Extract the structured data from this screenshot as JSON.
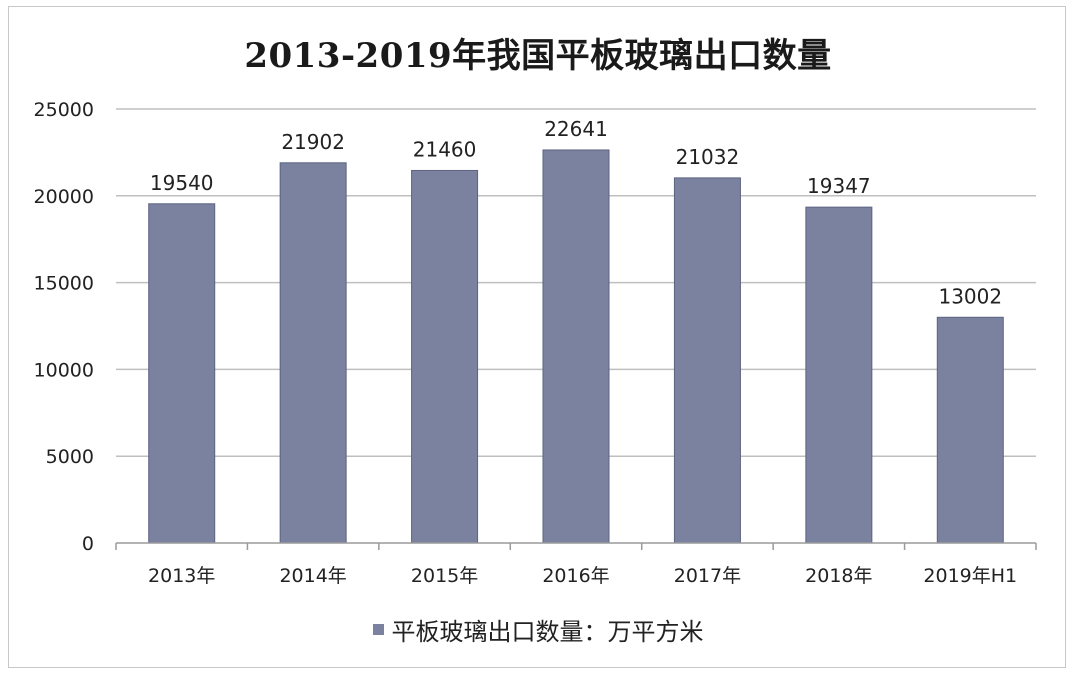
{
  "chart_data": {
    "type": "bar",
    "title": "2013-2019年我国平板玻璃出口数量",
    "categories": [
      "2013年",
      "2014年",
      "2015年",
      "2016年",
      "2017年",
      "2018年",
      "2019年H1"
    ],
    "series": [
      {
        "name": "平板玻璃出口数量：万平方米",
        "values": [
          19540,
          21902,
          21460,
          22641,
          21032,
          19347,
          13002
        ]
      }
    ],
    "ylim": [
      0,
      25000
    ],
    "yticks": [
      0,
      5000,
      10000,
      15000,
      20000,
      25000
    ],
    "grid": true,
    "legend_position": "bottom",
    "colors": {
      "bar": "#7b829f",
      "bar_edge": "#5d6482",
      "grid": "#bfbfbf",
      "axis": "#9a9a9a"
    }
  }
}
